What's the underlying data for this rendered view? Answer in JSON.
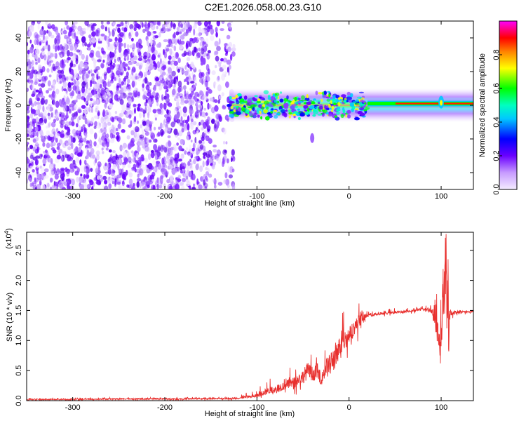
{
  "title": "C2E1.2026.058.00.23.G10",
  "colors": {
    "snr_line": "#e8302e",
    "spectrogram_low": "#6a00ff",
    "frame": "#000000"
  },
  "chart_data": [
    {
      "type": "heatmap",
      "xlabel": "Height of straight line (km)",
      "ylabel": "Frequency (Hz)",
      "xlim": [
        -350,
        135
      ],
      "ylim": [
        -50,
        50
      ],
      "xticks": [
        -300,
        -200,
        -100,
        0,
        100
      ],
      "yticks": [
        -40,
        -20,
        0,
        20,
        40
      ],
      "colorbar": {
        "label": "Normalized spectral amplitude",
        "range": [
          0.0,
          1.0
        ],
        "ticks": [
          "0.0",
          "0.2",
          "0.4",
          "0.6",
          "0.8"
        ],
        "tick_values": [
          0.0,
          0.2,
          0.4,
          0.6,
          0.8
        ]
      },
      "features": [
        {
          "x_range": [
            -350,
            -125
          ],
          "freq_range": [
            -50,
            50
          ],
          "amplitude": 0.1,
          "pattern": "scattered noise"
        },
        {
          "x_range": [
            -130,
            20
          ],
          "freq_range": [
            -8,
            8
          ],
          "amplitude": 0.5,
          "pattern": "turbulent band"
        },
        {
          "x_range": [
            20,
            135
          ],
          "freq_center": 1,
          "amplitude": 0.9,
          "pattern": "stable carrier"
        },
        {
          "x_range": [
            -45,
            -35
          ],
          "freq_range": [
            -22,
            -17
          ],
          "amplitude": 0.2,
          "pattern": "isolated blob"
        }
      ]
    },
    {
      "type": "line",
      "xlabel": "Height of straight line (km)",
      "ylabel": "SNR (10 * v/v)",
      "y_multiplier": "(x10",
      "y_multiplier_exp": "4",
      "y_multiplier_close": ")",
      "xlim": [
        -350,
        135
      ],
      "ylim": [
        0,
        2.8
      ],
      "xticks": [
        -300,
        -200,
        -100,
        0,
        100
      ],
      "yticks": [
        "0.0",
        "0.5",
        "1.0",
        "1.5",
        "2.0",
        "2.5"
      ],
      "ytick_values": [
        0.0,
        0.5,
        1.0,
        1.5,
        2.0,
        2.5
      ],
      "series": [
        {
          "x": [
            -350,
            -300,
            -250,
            -200,
            -150,
            -120,
            -100,
            -90,
            -80,
            -70,
            -60,
            -50,
            -45,
            -40,
            -35,
            -30,
            -25,
            -20,
            -15,
            -10,
            -5,
            0,
            5,
            10,
            15,
            20,
            30,
            40,
            50,
            60,
            70,
            80,
            90,
            95,
            100,
            103,
            105,
            108,
            110,
            120,
            135
          ],
          "y": [
            0.02,
            0.02,
            0.03,
            0.03,
            0.03,
            0.04,
            0.08,
            0.15,
            0.2,
            0.25,
            0.3,
            0.4,
            0.5,
            0.45,
            0.5,
            0.35,
            0.55,
            0.6,
            0.75,
            0.9,
            1.0,
            1.1,
            1.2,
            1.3,
            1.4,
            1.42,
            1.44,
            1.45,
            1.47,
            1.48,
            1.5,
            1.52,
            1.5,
            1.2,
            0.9,
            1.8,
            2.8,
            1.0,
            1.45,
            1.48,
            1.48
          ],
          "envelope_lower": [
            0.0,
            0.0,
            0.0,
            0.0,
            0.0,
            0.0,
            0.02,
            0.05,
            0.06,
            0.07,
            0.08,
            0.1,
            0.1,
            0.12,
            0.1,
            0.08,
            0.15,
            0.2,
            0.3,
            0.45,
            0.6,
            0.75,
            0.85,
            1.0,
            1.15,
            1.3,
            1.38,
            1.4,
            1.42,
            1.44,
            1.45,
            1.46,
            1.4,
            0.6,
            0.5,
            0.8,
            1.2,
            0.5,
            1.35,
            1.42,
            1.44
          ],
          "envelope_upper": [
            0.05,
            0.05,
            0.06,
            0.06,
            0.06,
            0.08,
            0.2,
            0.35,
            0.4,
            0.5,
            0.6,
            0.75,
            0.9,
            0.8,
            0.95,
            0.6,
            1.1,
            1.3,
            1.55,
            1.4,
            1.6,
            1.45,
            1.55,
            1.65,
            1.6,
            1.48,
            1.5,
            1.52,
            1.55,
            1.55,
            1.56,
            1.58,
            1.6,
            2.0,
            1.9,
            2.4,
            2.8,
            2.3,
            1.55,
            1.53,
            1.52
          ]
        }
      ]
    }
  ]
}
